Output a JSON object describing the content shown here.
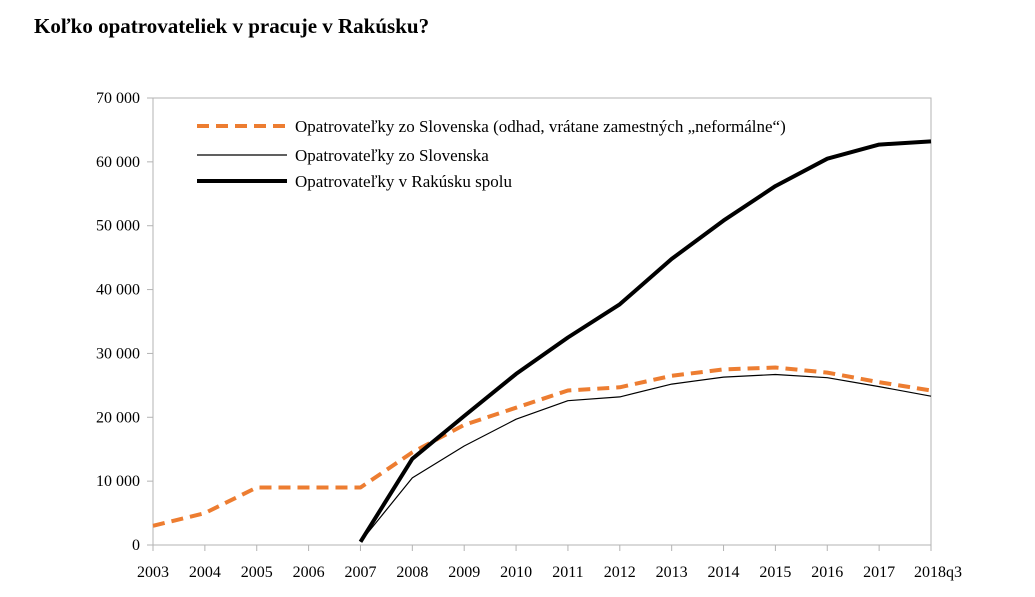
{
  "chart_data": {
    "type": "line",
    "title": "Koľko opatrovateliek v pracuje v Rakúsku?",
    "xlabel": "",
    "ylabel": "",
    "categories": [
      "2003",
      "2004",
      "2005",
      "2006",
      "2007",
      "2008",
      "2009",
      "2010",
      "2011",
      "2012",
      "2013",
      "2014",
      "2015",
      "2016",
      "2017",
      "2018q3"
    ],
    "ylim": [
      0,
      70000
    ],
    "yticks": [
      "0",
      "10 000",
      "20 000",
      "30 000",
      "40 000",
      "50 000",
      "60 000",
      "70 000"
    ],
    "ytick_values": [
      0,
      10000,
      20000,
      30000,
      40000,
      50000,
      60000,
      70000
    ],
    "grid": false,
    "legend_position": "top",
    "series": [
      {
        "name": "Opatrovateľky zo Slovenska (odhad, vrátane zamestných „neformálne“)",
        "color": "#ED7D31",
        "style": "dashed",
        "values": [
          3000,
          5000,
          9000,
          9000,
          9000,
          14500,
          18800,
          21500,
          24200,
          24700,
          26500,
          27500,
          27800,
          27000,
          25500,
          24200
        ]
      },
      {
        "name": "Opatrovateľky zo Slovenska",
        "color": "#000000",
        "style": "thin",
        "values": [
          null,
          null,
          null,
          null,
          500,
          10500,
          15500,
          19700,
          22600,
          23200,
          25200,
          26300,
          26700,
          26200,
          24800,
          23300
        ]
      },
      {
        "name": "Opatrovateľky v Rakúsku spolu",
        "color": "#000000",
        "style": "thick",
        "values": [
          null,
          null,
          null,
          null,
          500,
          13500,
          20200,
          26800,
          32500,
          37700,
          44800,
          50800,
          56200,
          60500,
          62700,
          63200
        ]
      }
    ]
  }
}
